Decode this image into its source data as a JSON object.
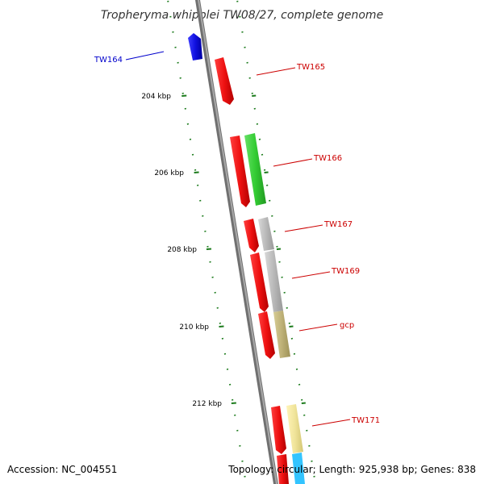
{
  "title": "Tropheryma whipplei TW08/27, complete genome",
  "footer": {
    "accession": "Accession: NC_004551",
    "topology": "Topology: circular; Length: 925,938 bp; Genes: 838"
  },
  "scale_labels": [
    "204 kbp",
    "206 kbp",
    "208 kbp",
    "210 kbp",
    "212 kbp"
  ],
  "colors": {
    "backbone": "#808080",
    "tick": "#1a7a1a",
    "label_red": "#cc0000",
    "label_blue": "#0000cc"
  },
  "genes": [
    {
      "name": "TW164",
      "label_color": "#0000cc",
      "fill": "#1010e0",
      "strand": "reverse"
    },
    {
      "name": "TW165",
      "label_color": "#cc0000",
      "fill": "#ee1111",
      "strand": "forward"
    },
    {
      "name": "TW166",
      "label_color": "#cc0000",
      "fill": "#ee1111",
      "strand": "forward",
      "partner_fill": "#33cc33"
    },
    {
      "name": "TW167",
      "label_color": "#cc0000",
      "fill": "#ee1111",
      "strand": "forward",
      "partner_fill": "#b8b8b8"
    },
    {
      "name": "TW169",
      "label_color": "#cc0000",
      "fill": "#ee1111",
      "strand": "forward",
      "partner_fill": "#b8b8b8"
    },
    {
      "name": "gcp",
      "label_color": "#cc0000",
      "fill": "#ee1111",
      "strand": "forward",
      "partner_fill": "#bdb076"
    },
    {
      "name": "TW171",
      "label_color": "#cc0000",
      "fill": "#ee1111",
      "strand": "forward",
      "partner_fill": "#f0e49a"
    }
  ]
}
